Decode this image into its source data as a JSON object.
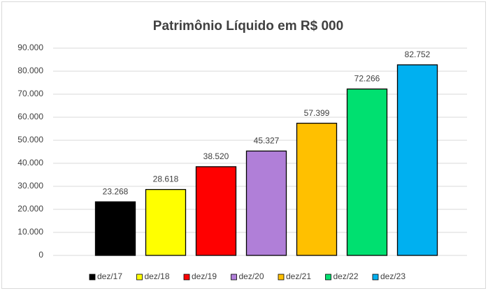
{
  "chart_data": {
    "type": "bar",
    "title": "Patrimônio Líquido em R$ 000",
    "categories": [
      "dez/17",
      "dez/18",
      "dez/19",
      "dez/20",
      "dez/21",
      "dez/22",
      "dez/23"
    ],
    "values": [
      23268,
      28618,
      38520,
      45327,
      57399,
      72266,
      82752
    ],
    "value_labels": [
      "23.268",
      "28.618",
      "38.520",
      "45.327",
      "57.399",
      "72.266",
      "82.752"
    ],
    "colors": [
      "#000000",
      "#ffff00",
      "#ff0000",
      "#b07fd8",
      "#ffc000",
      "#00e070",
      "#00b0f0"
    ],
    "ylim": [
      0,
      90000
    ],
    "yticks": [
      0,
      {
        "value": 10000,
        "label": "10.000"
      },
      {
        "value": 20000,
        "label": "20.000"
      },
      {
        "value": 30000,
        "label": "30.000"
      },
      {
        "value": 40000,
        "label": "40.000"
      },
      {
        "value": 50000,
        "label": "50.000"
      },
      {
        "value": 60000,
        "label": "60.000"
      },
      {
        "value": 70000,
        "label": "70.000"
      },
      {
        "value": 80000,
        "label": "80.000"
      },
      {
        "value": 90000,
        "label": "90.000"
      }
    ],
    "grid": true,
    "legend": "bottom"
  }
}
